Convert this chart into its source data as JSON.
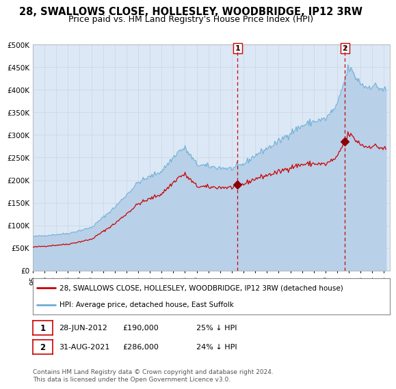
{
  "title": "28, SWALLOWS CLOSE, HOLLESLEY, WOODBRIDGE, IP12 3RW",
  "subtitle": "Price paid vs. HM Land Registry's House Price Index (HPI)",
  "ylim": [
    0,
    500000
  ],
  "yticks": [
    0,
    50000,
    100000,
    150000,
    200000,
    250000,
    300000,
    350000,
    400000,
    450000,
    500000
  ],
  "ytick_labels": [
    "£0",
    "£50K",
    "£100K",
    "£150K",
    "£200K",
    "£250K",
    "£300K",
    "£350K",
    "£400K",
    "£450K",
    "£500K"
  ],
  "xlim_start": 1995.0,
  "xlim_end": 2025.5,
  "hpi_color": "#b8d0e8",
  "hpi_line_color": "#6baed6",
  "property_color": "#cc0000",
  "marker_color": "#8b0000",
  "vline_color": "#cc0000",
  "grid_color": "#c8d4e0",
  "plot_bg": "#dce8f5",
  "legend_label_property": "28, SWALLOWS CLOSE, HOLLESLEY, WOODBRIDGE, IP12 3RW (detached house)",
  "legend_label_hpi": "HPI: Average price, detached house, East Suffolk",
  "sale1_date": 2012.49,
  "sale1_price": 190000,
  "sale1_label": "1",
  "sale2_date": 2021.66,
  "sale2_price": 286000,
  "sale2_label": "2",
  "annotation_sale1_date": "28-JUN-2012",
  "annotation_sale1_price": "£190,000",
  "annotation_sale1_hpi": "25% ↓ HPI",
  "annotation_sale2_date": "31-AUG-2021",
  "annotation_sale2_price": "£286,000",
  "annotation_sale2_hpi": "24% ↓ HPI",
  "footer": "Contains HM Land Registry data © Crown copyright and database right 2024.\nThis data is licensed under the Open Government Licence v3.0.",
  "title_fontsize": 10.5,
  "subtitle_fontsize": 9,
  "tick_fontsize": 7.5,
  "legend_fontsize": 7.5,
  "annotation_fontsize": 8
}
